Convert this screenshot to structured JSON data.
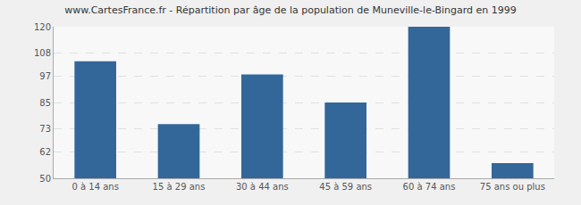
{
  "chart_data": {
    "type": "bar",
    "title": "www.CartesFrance.fr - Répartition par âge de la population de Muneville-le-Bingard en 1999",
    "categories": [
      "0 à 14 ans",
      "15 à 29 ans",
      "30 à 44 ans",
      "45 à 59 ans",
      "60 à 74 ans",
      "75 ans ou plus"
    ],
    "values": [
      104,
      75,
      98,
      85,
      120,
      57
    ],
    "color": "#336699",
    "ylim": [
      50,
      120
    ],
    "yticks": [
      50,
      62,
      73,
      85,
      97,
      108,
      120
    ],
    "grid": true
  }
}
